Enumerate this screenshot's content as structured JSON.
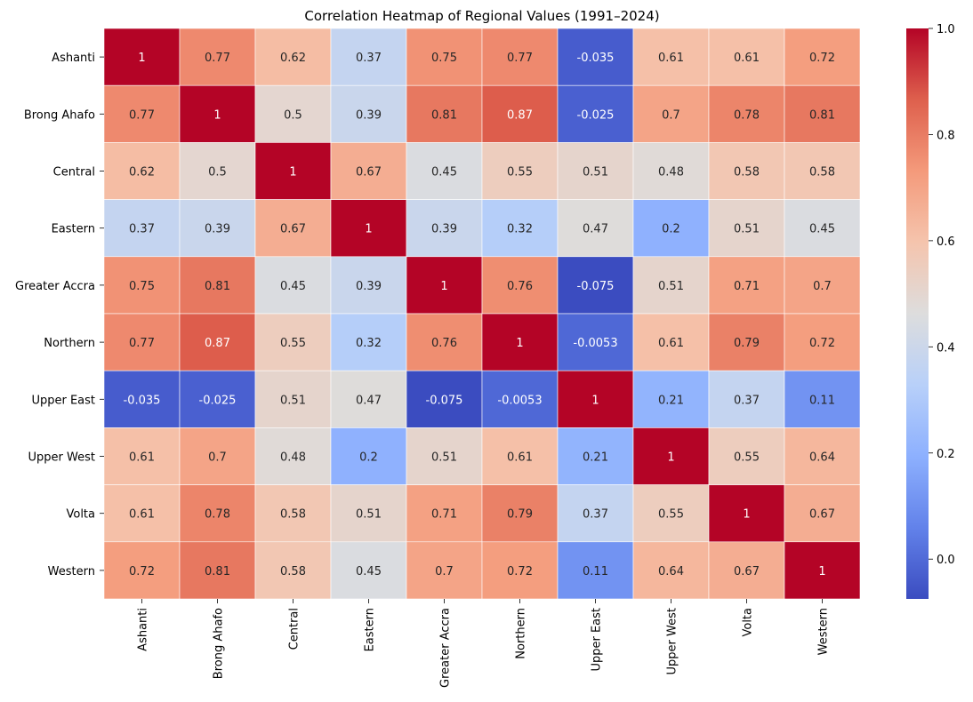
{
  "chart_data": {
    "type": "heatmap",
    "title": "Correlation Heatmap of Regional Values (1991–2024)",
    "xlabel": "",
    "ylabel": "",
    "rows": [
      "Ashanti",
      "Brong Ahafo",
      "Central",
      "Eastern",
      "Greater Accra",
      "Northern",
      "Upper East",
      "Upper West",
      "Volta",
      "Western"
    ],
    "columns": [
      "Ashanti",
      "Brong Ahafo",
      "Central",
      "Eastern",
      "Greater Accra",
      "Northern",
      "Upper East",
      "Upper West",
      "Volta",
      "Western"
    ],
    "values": [
      [
        1,
        0.77,
        0.62,
        0.37,
        0.75,
        0.77,
        -0.035,
        0.61,
        0.61,
        0.72
      ],
      [
        0.77,
        1,
        0.5,
        0.39,
        0.81,
        0.87,
        -0.025,
        0.7,
        0.78,
        0.81
      ],
      [
        0.62,
        0.5,
        1,
        0.67,
        0.45,
        0.55,
        0.51,
        0.48,
        0.58,
        0.58
      ],
      [
        0.37,
        0.39,
        0.67,
        1,
        0.39,
        0.32,
        0.47,
        0.2,
        0.51,
        0.45
      ],
      [
        0.75,
        0.81,
        0.45,
        0.39,
        1,
        0.76,
        -0.075,
        0.51,
        0.71,
        0.7
      ],
      [
        0.77,
        0.87,
        0.55,
        0.32,
        0.76,
        1,
        -0.0053,
        0.61,
        0.79,
        0.72
      ],
      [
        -0.035,
        -0.025,
        0.51,
        0.47,
        -0.075,
        -0.0053,
        1,
        0.21,
        0.37,
        0.11
      ],
      [
        0.61,
        0.7,
        0.48,
        0.2,
        0.51,
        0.61,
        0.21,
        1,
        0.55,
        0.64
      ],
      [
        0.61,
        0.78,
        0.58,
        0.51,
        0.71,
        0.79,
        0.37,
        0.55,
        1,
        0.67
      ],
      [
        0.72,
        0.81,
        0.58,
        0.45,
        0.7,
        0.72,
        0.11,
        0.64,
        0.67,
        1
      ]
    ],
    "labels": [
      [
        "1",
        "0.77",
        "0.62",
        "0.37",
        "0.75",
        "0.77",
        "-0.035",
        "0.61",
        "0.61",
        "0.72"
      ],
      [
        "0.77",
        "1",
        "0.5",
        "0.39",
        "0.81",
        "0.87",
        "-0.025",
        "0.7",
        "0.78",
        "0.81"
      ],
      [
        "0.62",
        "0.5",
        "1",
        "0.67",
        "0.45",
        "0.55",
        "0.51",
        "0.48",
        "0.58",
        "0.58"
      ],
      [
        "0.37",
        "0.39",
        "0.67",
        "1",
        "0.39",
        "0.32",
        "0.47",
        "0.2",
        "0.51",
        "0.45"
      ],
      [
        "0.75",
        "0.81",
        "0.45",
        "0.39",
        "1",
        "0.76",
        "-0.075",
        "0.51",
        "0.71",
        "0.7"
      ],
      [
        "0.77",
        "0.87",
        "0.55",
        "0.32",
        "0.76",
        "1",
        "-0.0053",
        "0.61",
        "0.79",
        "0.72"
      ],
      [
        "-0.035",
        "-0.025",
        "0.51",
        "0.47",
        "-0.075",
        "-0.0053",
        "1",
        "0.21",
        "0.37",
        "0.11"
      ],
      [
        "0.61",
        "0.7",
        "0.48",
        "0.2",
        "0.51",
        "0.61",
        "0.21",
        "1",
        "0.55",
        "0.64"
      ],
      [
        "0.61",
        "0.78",
        "0.58",
        "0.51",
        "0.71",
        "0.79",
        "0.37",
        "0.55",
        "1",
        "0.67"
      ],
      [
        "0.72",
        "0.81",
        "0.58",
        "0.45",
        "0.7",
        "0.72",
        "0.11",
        "0.64",
        "0.67",
        "1"
      ]
    ],
    "colormap": "coolwarm",
    "color_range": [
      -0.075,
      1
    ],
    "colorbar_ticks": [
      "0.0",
      "0.2",
      "0.4",
      "0.6",
      "0.8",
      "1.0"
    ],
    "colorbar_tick_values": [
      0,
      0.2,
      0.4,
      0.6,
      0.8,
      1.0
    ],
    "colorbar_position": "right",
    "cell_border_color": "#ffffff",
    "annotation_color_dark": "#262626",
    "annotation_color_light": "#ffffff"
  }
}
